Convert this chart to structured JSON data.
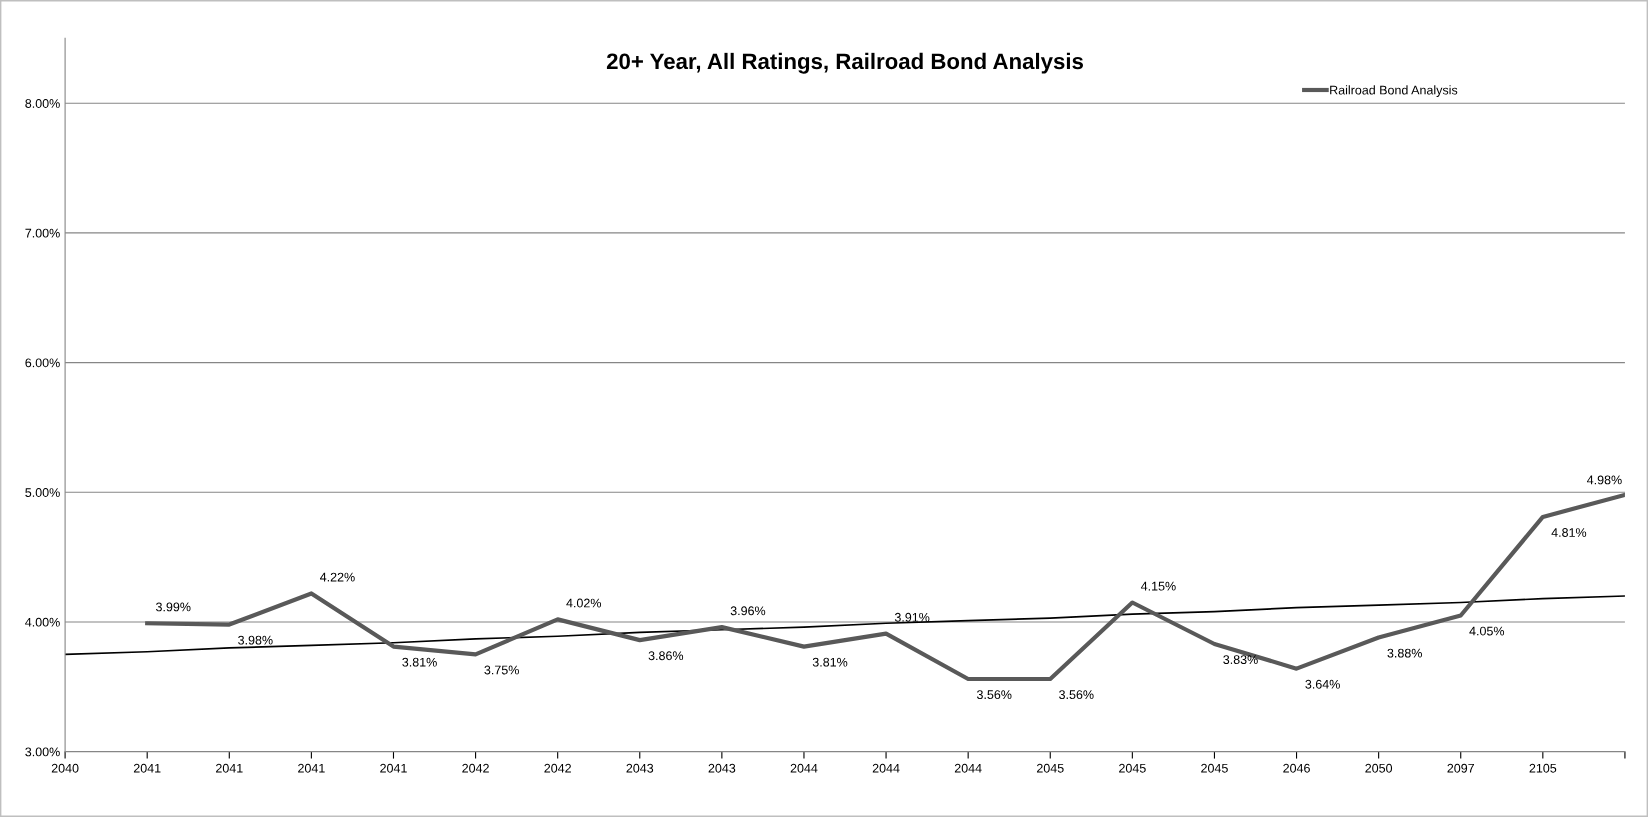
{
  "chart_data": {
    "type": "line",
    "title": "20+ Year, All Ratings, Railroad Bond Analysis",
    "categories": [
      "2040",
      "2041",
      "2041",
      "2041",
      "2041",
      "2042",
      "2042",
      "2043",
      "2043",
      "2044",
      "2044",
      "2044",
      "2045",
      "2045",
      "2045",
      "2046",
      "2050",
      "2097",
      "2105",
      null
    ],
    "series": [
      {
        "name": "Railroad Bond Analysis",
        "color": "#595959",
        "values": [
          null,
          3.99,
          3.98,
          4.22,
          3.81,
          3.75,
          4.02,
          3.86,
          3.96,
          3.81,
          3.91,
          3.56,
          3.56,
          4.15,
          3.83,
          3.64,
          3.88,
          4.05,
          4.81,
          4.98
        ],
        "value_labels": [
          null,
          "3.99%",
          "3.98%",
          "4.22%",
          "3.81%",
          "3.75%",
          "4.02%",
          "3.86%",
          "3.96%",
          "3.81%",
          "3.91%",
          "3.56%",
          "3.56%",
          "4.15%",
          "3.83%",
          "3.64%",
          "3.88%",
          "4.05%",
          "4.81%",
          "4.98%"
        ]
      },
      {
        "type": "line",
        "color": "#000000",
        "values": [
          3.75,
          3.77,
          3.8,
          3.82,
          3.84,
          3.87,
          3.89,
          3.92,
          3.94,
          3.96,
          3.99,
          4.01,
          4.03,
          4.06,
          4.08,
          4.11,
          4.13,
          4.15,
          4.18,
          4.2
        ]
      }
    ],
    "ylim": [
      3,
      8.5
    ],
    "yticks": [
      {
        "value": 3,
        "label": "3.00%"
      },
      {
        "value": 4,
        "label": "4.00%"
      },
      {
        "value": 5,
        "label": "5.00%"
      },
      {
        "value": 6,
        "label": "6.00%"
      },
      {
        "value": 7,
        "label": "7.00%"
      },
      {
        "value": 8,
        "label": "8.00%"
      }
    ],
    "grid": "y",
    "legend": "top right",
    "marker": "none"
  }
}
